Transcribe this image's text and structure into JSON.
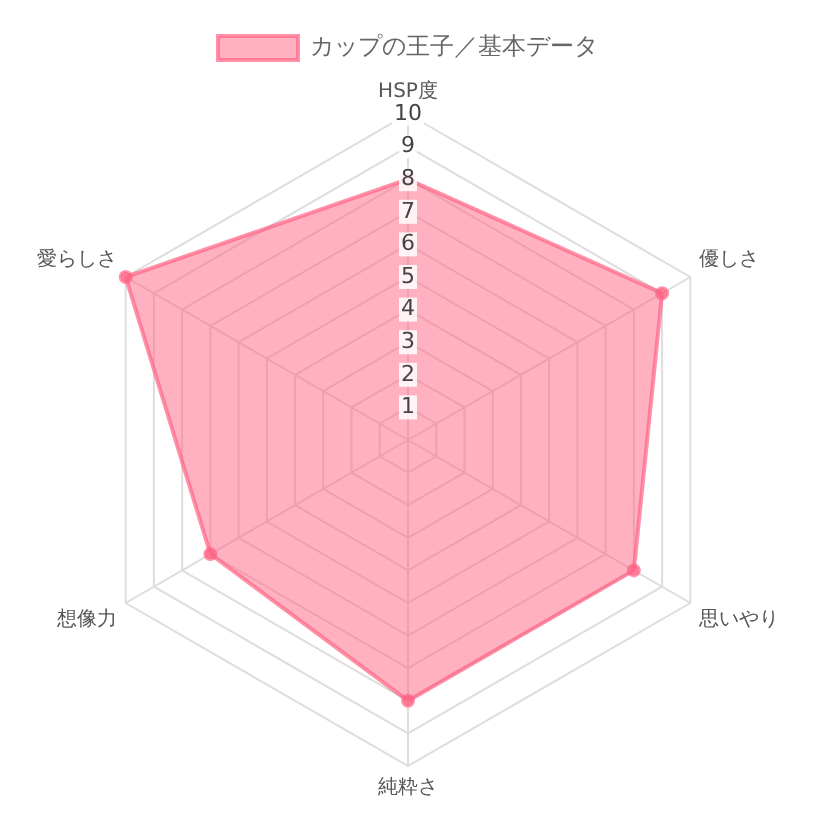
{
  "chart_data": {
    "type": "radar",
    "categories": [
      "HSP度",
      "優しさ",
      "思いやり",
      "純粋さ",
      "想像力",
      "愛らしさ"
    ],
    "series": [
      {
        "name": "カップの王子／基本データ",
        "color": "#ff6384",
        "values": [
          8,
          9,
          8,
          8,
          7,
          10
        ]
      }
    ],
    "ylim": [
      0,
      10
    ],
    "yticks": [
      1,
      2,
      3,
      4,
      5,
      6,
      7,
      8,
      9,
      10
    ],
    "grid": true,
    "legend": "top",
    "marker": "circle"
  }
}
